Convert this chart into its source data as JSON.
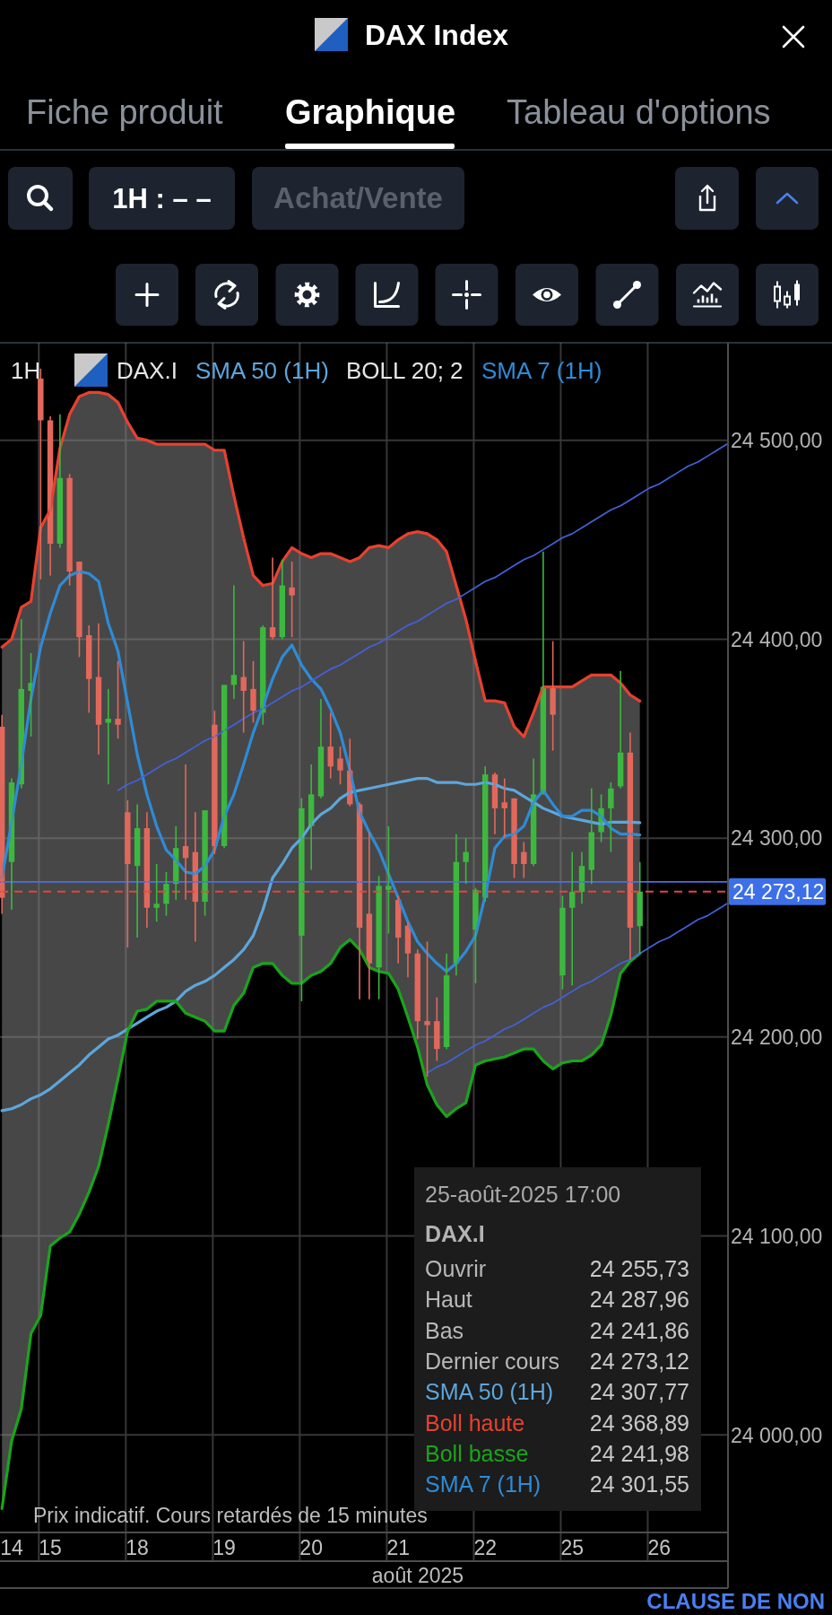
{
  "chart_data": {
    "type": "candlestick",
    "title": "DAX Index",
    "xlabel": "août 2025",
    "categories": [
      null,
      "14",
      null,
      null,
      null,
      "15",
      null,
      null,
      null,
      null,
      null,
      null,
      null,
      null,
      "18",
      null,
      null,
      null,
      null,
      null,
      null,
      null,
      null,
      "19",
      null,
      null,
      null,
      null,
      null,
      null,
      null,
      null,
      "20",
      null,
      null,
      null,
      null,
      null,
      null,
      null,
      null,
      "21",
      null,
      null,
      null,
      null,
      null,
      null,
      null,
      null,
      "22",
      null,
      null,
      null,
      null,
      null,
      null,
      null,
      null,
      "25",
      null,
      null,
      null,
      null,
      null,
      null,
      null,
      null,
      "26",
      null,
      null,
      null,
      null,
      null,
      null,
      null
    ],
    "ohlc": [
      [
        24356,
        24362,
        24262,
        24270
      ],
      [
        24288,
        24330,
        24264,
        24328
      ],
      [
        24327,
        24410,
        24325,
        24375
      ],
      [
        24374,
        24393,
        24351,
        24378
      ],
      [
        24531,
        24536,
        24430,
        24510
      ],
      [
        24510,
        24512,
        24432,
        24448
      ],
      [
        24448,
        24513,
        24446,
        24481
      ],
      [
        24481,
        24483,
        24427,
        24434
      ],
      [
        24439,
        24439,
        24391,
        24401
      ],
      [
        24402,
        24407,
        24363,
        24380
      ],
      [
        24381,
        24408,
        24342,
        24357
      ],
      [
        24358,
        24375,
        24327,
        24360
      ],
      [
        24360,
        24389,
        24350,
        24357
      ],
      [
        24313,
        24319,
        24245,
        24287
      ],
      [
        24286,
        24317,
        24250,
        24305
      ],
      [
        24305,
        24313,
        24255,
        24265
      ],
      [
        24265,
        24287,
        24258,
        24267
      ],
      [
        24267,
        24283,
        24261,
        24277
      ],
      [
        24277,
        24306,
        24269,
        24295
      ],
      [
        24296,
        24337,
        24269,
        24290
      ],
      [
        24293,
        24313,
        24248,
        24268
      ],
      [
        24268,
        24314,
        24261,
        24314
      ],
      [
        24357,
        24364,
        24292,
        24296
      ],
      [
        24296,
        24377,
        24295,
        24377
      ],
      [
        24377,
        24427,
        24370,
        24382
      ],
      [
        24381,
        24399,
        24353,
        24374
      ],
      [
        24375,
        24389,
        24358,
        24364
      ],
      [
        24363,
        24407,
        24357,
        24406
      ],
      [
        24406,
        24441,
        24400,
        24401
      ],
      [
        24401,
        24440,
        24400,
        24427
      ],
      [
        24426,
        24439,
        24401,
        24422
      ],
      [
        24251,
        24320,
        24218,
        24315
      ],
      [
        24306,
        24337,
        24284,
        24322
      ],
      [
        24321,
        24370,
        24320,
        24346
      ],
      [
        24346,
        24363,
        24330,
        24336
      ],
      [
        24340,
        24346,
        24327,
        24334
      ],
      [
        24334,
        24350,
        24316,
        24317
      ],
      [
        24317,
        24318,
        24219,
        24255
      ],
      [
        24262,
        24303,
        24219,
        24237
      ],
      [
        24235,
        24281,
        24219,
        24276
      ],
      [
        24274,
        24306,
        24252,
        24276
      ],
      [
        24269,
        24271,
        24237,
        24250
      ],
      [
        24256,
        24258,
        24230,
        24242
      ],
      [
        24242,
        24244,
        24199,
        24208
      ],
      [
        24208,
        24248,
        24180,
        24206
      ],
      [
        24208,
        24220,
        24188,
        24194
      ],
      [
        24195,
        24242,
        24194,
        24231
      ],
      [
        24237,
        24302,
        24231,
        24288
      ],
      [
        24288,
        24300,
        24277,
        24293
      ],
      [
        24254,
        24275,
        24227,
        24274
      ],
      [
        24270,
        24336,
        24268,
        24332
      ],
      [
        24332,
        24333,
        24302,
        24315
      ],
      [
        24318,
        24330,
        24300,
        24315
      ],
      [
        24320,
        24320,
        24280,
        24287
      ],
      [
        24293,
        24298,
        24280,
        24287
      ],
      [
        24287,
        24340,
        24286,
        24322
      ],
      [
        24322,
        24444,
        24322,
        24376
      ],
      [
        24376,
        24399,
        24344,
        24362
      ],
      [
        24231,
        24271,
        24224,
        24265
      ],
      [
        24265,
        24293,
        24226,
        24273
      ],
      [
        24273,
        24293,
        24267,
        24286
      ],
      [
        24284,
        24325,
        24277,
        24303
      ],
      [
        24303,
        24322,
        24298,
        24315
      ],
      [
        24315,
        24328,
        24293,
        24325
      ],
      [
        24326,
        24384,
        24325,
        24343
      ],
      [
        24343,
        24353,
        24239,
        24255
      ],
      [
        24255.73,
        24287.96,
        24241.86,
        24273.12
      ],
      null,
      null,
      null,
      null,
      null,
      null,
      null,
      null,
      null
    ],
    "series": [
      {
        "name": "SMA 50 (1H)",
        "type": "line",
        "color": "#5ea6dc",
        "values": [
          24163,
          24164,
          24166,
          24169,
          24171,
          24174,
          24178,
          24182,
          24186,
          24191,
          24195,
          24199,
          24201,
          24204,
          24207,
          24210,
          24213,
          24215,
          24218,
          24223,
          24226,
          24228,
          24231,
          24235,
          24239,
          24244,
          24251,
          24264,
          24280,
          24287,
          24295,
          24300,
          24307,
          24312,
          24315,
          24320,
          24323,
          24324,
          24325,
          24326,
          24327,
          24328,
          24329,
          24330,
          24330,
          24328,
          24328,
          24328,
          24327,
          24327,
          24328,
          24327,
          24325,
          24324,
          24321,
          24318,
          24315,
          24313,
          24311,
          24310,
          24309,
          24308,
          24307,
          24308,
          24308,
          24308,
          24307.77,
          null,
          null,
          null,
          null,
          null,
          null,
          null,
          null,
          null
        ]
      },
      {
        "name": "Boll haute",
        "type": "line",
        "color": "#e8412f",
        "values": [
          24396,
          24400,
          24416,
          24419,
          24456,
          24465,
          24496,
          24513,
          24522,
          24524,
          24524,
          24523,
          24519,
          24509,
          24501,
          24500,
          24498,
          24498,
          24498,
          24498,
          24498,
          24498,
          24495,
          24495,
          24472,
          24451,
          24432,
          24427,
          24428,
          24439,
          24446,
          24443,
          24441,
          24443,
          24443,
          24441,
          24439,
          24441,
          24446,
          24447,
          24446,
          24450,
          24453,
          24454,
          24453,
          24450,
          24444,
          24427,
          24410,
          24389,
          24369,
          24369,
          24368,
          24356,
          24351,
          24363,
          24376,
          24376,
          24376,
          24376,
          24379,
          24382,
          24382,
          24382,
          24378,
          24372,
          24368.89,
          null,
          null,
          null,
          null,
          null,
          null,
          null,
          null,
          null
        ],
        "lower": [
          23963,
          23997,
          24013,
          24051,
          24060,
          24095,
          24099,
          24102,
          24111,
          24122,
          24135,
          24156,
          24179,
          24203,
          24213,
          24214,
          24218,
          24218,
          24218,
          24212,
          24210,
          24208,
          24203,
          24203,
          24216,
          24222,
          24235,
          24237,
          24237,
          24231,
          24227,
          24227,
          24231,
          24233,
          24237,
          24245,
          24249,
          24244,
          24235,
          24233,
          24232,
          24224,
          24210,
          24195,
          24176,
          24166,
          24160,
          24164,
          24167,
          24186,
          24188,
          24189,
          24190,
          24192,
          24194,
          24194,
          24188,
          24184,
          24187,
          24188,
          24188,
          24191,
          24196,
          24211,
          24232,
          24238,
          24241.98,
          null,
          null,
          null,
          null,
          null,
          null,
          null,
          null,
          null
        ],
        "upper": [
          24396,
          24400,
          24416,
          24419,
          24456,
          24465,
          24496,
          24513,
          24522,
          24524,
          24524,
          24523,
          24519,
          24509,
          24501,
          24500,
          24498,
          24498,
          24498,
          24498,
          24498,
          24498,
          24495,
          24495,
          24472,
          24451,
          24432,
          24427,
          24428,
          24439,
          24446,
          24443,
          24441,
          24443,
          24443,
          24441,
          24439,
          24441,
          24446,
          24447,
          24446,
          24450,
          24453,
          24454,
          24453,
          24450,
          24444,
          24427,
          24410,
          24389,
          24369,
          24369,
          24368,
          24356,
          24351,
          24363,
          24376,
          24376,
          24376,
          24376,
          24379,
          24382,
          24382,
          24382,
          24378,
          24372,
          24368.89,
          null,
          null,
          null,
          null,
          null,
          null,
          null,
          null,
          null
        ]
      },
      {
        "name": "Boll basse",
        "type": "line",
        "color": "#1aa51a",
        "values": [
          23963,
          23997,
          24013,
          24051,
          24060,
          24095,
          24099,
          24102,
          24111,
          24122,
          24135,
          24156,
          24179,
          24203,
          24213,
          24214,
          24218,
          24218,
          24218,
          24212,
          24210,
          24208,
          24203,
          24203,
          24216,
          24222,
          24235,
          24237,
          24237,
          24231,
          24227,
          24227,
          24231,
          24233,
          24237,
          24245,
          24249,
          24244,
          24235,
          24233,
          24232,
          24224,
          24210,
          24195,
          24176,
          24166,
          24160,
          24164,
          24167,
          24186,
          24188,
          24189,
          24190,
          24192,
          24194,
          24194,
          24188,
          24184,
          24187,
          24188,
          24188,
          24191,
          24196,
          24211,
          24232,
          24238,
          24241.98,
          null,
          null,
          null,
          null,
          null,
          null,
          null,
          null,
          null
        ]
      },
      {
        "name": "SMA 7 (1H)",
        "type": "line",
        "color": "#2f8bd6",
        "values": [
          24280,
          24308,
          24337,
          24370,
          24396,
          24413,
          24427,
          24432,
          24434,
          24433,
          24429,
          24408,
          24394,
          24368,
          24342,
          24322,
          24306,
          24294,
          24289,
          24283,
          24282,
          24286,
          24294,
          24311,
          24322,
          24337,
          24353,
          24366,
          24380,
          24391,
          24397,
          24387,
          24380,
          24375,
          24365,
          24353,
          24334,
          24313,
          24303,
          24294,
          24282,
          24270,
          24258,
          24248,
          24242,
          24237,
          24233,
          24237,
          24243,
          24251,
          24271,
          24295,
          24301,
          24302,
          24306,
          24318,
          24324,
          24317,
          24311,
          24311,
          24314,
          24314,
          24311,
          24305,
          24302,
          24302,
          24301.55,
          null,
          null,
          null,
          null,
          null,
          null,
          null,
          null,
          null
        ]
      },
      {
        "type": "line",
        "color": "#4262dc",
        "values": [
          null,
          null,
          null,
          null,
          null,
          null,
          null,
          null,
          null,
          null,
          null,
          null,
          24324,
          24327,
          24329,
          24332,
          24335,
          24338,
          24340,
          24343,
          24346,
          24349,
          24351,
          24354,
          24357,
          24360,
          24363,
          24365,
          24368,
          24371,
          24374,
          24376,
          24379,
          24382,
          24385,
          24387,
          24390,
          24393,
          24396,
          24398,
          24401,
          24404,
          24407,
          24409,
          24412,
          24415,
          24418,
          24420,
          24423,
          24426,
          24429,
          24431,
          24434,
          24437,
          24440,
          24442,
          24445,
          24448,
          24451,
          24453,
          24456,
          24459,
          24462,
          24465,
          24467,
          24470,
          24473,
          24476,
          24478,
          24481,
          24484,
          24487,
          24489,
          24492,
          24495,
          24498
        ]
      },
      {
        "type": "line",
        "color": "#4262dc",
        "values": [
          null,
          null,
          null,
          null,
          null,
          null,
          null,
          null,
          null,
          null,
          null,
          null,
          null,
          null,
          null,
          null,
          null,
          null,
          null,
          null,
          null,
          null,
          null,
          null,
          null,
          null,
          null,
          null,
          null,
          null,
          null,
          null,
          null,
          null,
          null,
          null,
          null,
          null,
          null,
          null,
          null,
          null,
          null,
          null,
          24182,
          24185,
          24187,
          24190,
          24193,
          24196,
          24198,
          24201,
          24204,
          24206,
          24209,
          24212,
          24215,
          24217,
          24220,
          24223,
          24226,
          24228,
          24231,
          24234,
          24237,
          24239,
          24242,
          24245,
          24248,
          24250,
          24253,
          24256,
          24259,
          24261,
          24264,
          24267
        ]
      }
    ],
    "ylim": [
      23951,
      24549
    ],
    "yticks": [
      {
        "value": 24000,
        "label": "24 000,00"
      },
      {
        "value": 24100,
        "label": "24 100,00"
      },
      {
        "value": 24200,
        "label": "24 200,00"
      },
      {
        "value": 24300,
        "label": "24 300,00"
      },
      {
        "value": 24400,
        "label": "24 400,00"
      },
      {
        "value": 24500,
        "label": "24 500,00"
      }
    ],
    "grid": true,
    "legend": "top",
    "ref_lines": [
      {
        "axis": "y",
        "value": 24278,
        "color": "#4a6ee0"
      },
      {
        "axis": "y",
        "value": 24273.12,
        "label": "24 273,12",
        "color": "#e0473c",
        "line_style": "dashed"
      }
    ],
    "annotations": [
      "Fiche produit",
      "Graphique",
      "Tableau d'options",
      "1H : – –",
      "Achat/Vente",
      "1H",
      "DAX.I",
      "BOLL 20; 2",
      "25-août-2025 17:00",
      "DAX.I",
      "Ouvrir",
      "24 255,73",
      "Haut",
      "24 287,96",
      "Bas",
      "24 241,86",
      "Dernier cours",
      "24 273,12",
      "24 307,77",
      "24 368,89",
      "24 241,98",
      "24 301,55",
      "Prix indicatif. Cours retardés de 15 minutes",
      "CLAUSE DE NON"
    ]
  }
}
